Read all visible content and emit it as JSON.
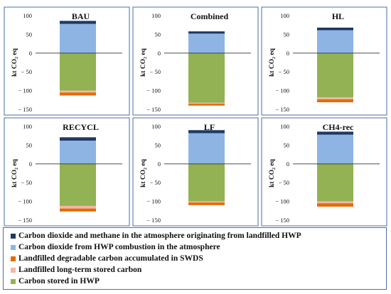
{
  "chart_data": {
    "type": "bar",
    "stacked": true,
    "ylabel": "kt CO₂ eq",
    "yticks": [
      100,
      50,
      0,
      -50,
      -100,
      -150
    ],
    "ylim": [
      -150,
      100
    ],
    "series_order": [
      "stored_hwp",
      "long_term",
      "swds",
      "combustion",
      "landfill_atm"
    ],
    "series": [
      {
        "key": "landfill_atm",
        "name": "Carbon dioxide and methane in the atmosphere originating from landfilled HWP",
        "color": "#1f3864"
      },
      {
        "key": "combustion",
        "name": "Carbon dioxide from HWP combustion in the atmosphere",
        "color": "#8eb4e3"
      },
      {
        "key": "swds",
        "name": "Landfilled degradable carbon accumulated in SWDS",
        "color": "#e36c0a"
      },
      {
        "key": "long_term",
        "name": "Landfilled long-term stored carbon",
        "color": "#f2b6a8"
      },
      {
        "key": "stored_hwp",
        "name": "Carbon stored in HWP",
        "color": "#92b254"
      }
    ],
    "panels": [
      {
        "title": "BAU",
        "values": {
          "landfill_atm": 8,
          "combustion": 78,
          "swds": -8,
          "long_term": -5,
          "stored_hwp": -100
        }
      },
      {
        "title": "Combined",
        "values": {
          "landfill_atm": 6,
          "combustion": 52,
          "swds": -5,
          "long_term": -3,
          "stored_hwp": -132
        }
      },
      {
        "title": "HL",
        "values": {
          "landfill_atm": 7,
          "combustion": 61,
          "swds": -8,
          "long_term": -5,
          "stored_hwp": -118
        }
      },
      {
        "title": "RECYCL",
        "values": {
          "landfill_atm": 9,
          "combustion": 62,
          "swds": -8,
          "long_term": -7,
          "stored_hwp": -112
        }
      },
      {
        "title": "LF",
        "values": {
          "landfill_atm": 8,
          "combustion": 82,
          "swds": -7,
          "long_term": -3,
          "stored_hwp": -100
        }
      },
      {
        "title": "CH4-rec",
        "values": {
          "landfill_atm": 8,
          "combustion": 78,
          "swds": -9,
          "long_term": -5,
          "stored_hwp": -100
        }
      }
    ]
  }
}
